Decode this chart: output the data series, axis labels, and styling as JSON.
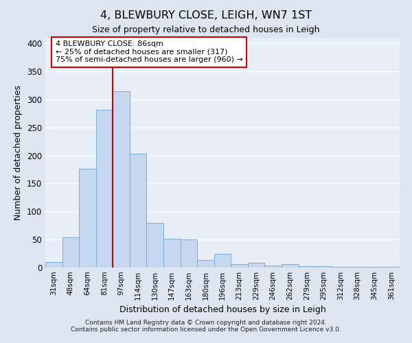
{
  "title": "4, BLEWBURY CLOSE, LEIGH, WN7 1ST",
  "subtitle": "Size of property relative to detached houses in Leigh",
  "xlabel": "Distribution of detached houses by size in Leigh",
  "ylabel": "Number of detached properties",
  "categories": [
    "31sqm",
    "48sqm",
    "64sqm",
    "81sqm",
    "97sqm",
    "114sqm",
    "130sqm",
    "147sqm",
    "163sqm",
    "180sqm",
    "196sqm",
    "213sqm",
    "229sqm",
    "246sqm",
    "262sqm",
    "279sqm",
    "295sqm",
    "312sqm",
    "328sqm",
    "345sqm",
    "361sqm"
  ],
  "values": [
    10,
    54,
    176,
    281,
    315,
    203,
    80,
    51,
    50,
    14,
    25,
    6,
    9,
    4,
    6,
    3,
    2,
    1,
    1,
    1,
    1
  ],
  "bar_color": "#c5d8f0",
  "bar_edge_color": "#7aadd4",
  "ylim": [
    0,
    410
  ],
  "yticks": [
    0,
    50,
    100,
    150,
    200,
    250,
    300,
    350,
    400
  ],
  "vline_x": 3.5,
  "vline_color": "#cc0000",
  "annotation_text": "4 BLEWBURY CLOSE: 86sqm\n← 25% of detached houses are smaller (317)\n75% of semi-detached houses are larger (960) →",
  "annotation_box_edge_color": "#cc0000",
  "annotation_box_face_color": "#ffffff",
  "footer_text": "Contains HM Land Registry data © Crown copyright and database right 2024.\nContains public sector information licensed under the Open Government Licence v3.0.",
  "background_color": "#dde6f0",
  "plot_bg_color": "#e8eef8"
}
